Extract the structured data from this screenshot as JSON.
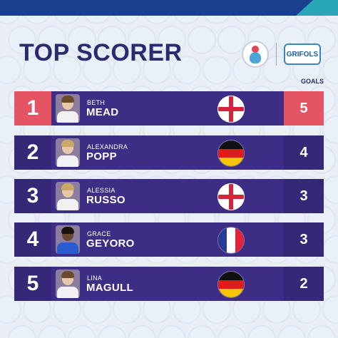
{
  "title": "TOP SCORER",
  "logos": {
    "uefa": "uefa-womens-euro-icon",
    "sponsor": "GRIFOLS"
  },
  "goals_header": "GOALS",
  "colors": {
    "purple": "#3e2d84",
    "highlight": "#e2384d",
    "title": "#2c2a6e"
  },
  "players": [
    {
      "rank": "1",
      "first": "BETH",
      "last": "MEAD",
      "flag": "england-flag-icon",
      "goals": "5"
    },
    {
      "rank": "2",
      "first": "ALEXANDRA",
      "last": "POPP",
      "flag": "germany-flag-icon",
      "goals": "4"
    },
    {
      "rank": "3",
      "first": "ALESSIA",
      "last": "RUSSO",
      "flag": "england-flag-icon",
      "goals": "3"
    },
    {
      "rank": "4",
      "first": "GRACE",
      "last": "GEYORO",
      "flag": "france-flag-icon",
      "goals": "3"
    },
    {
      "rank": "5",
      "first": "LINA",
      "last": "MAGULL",
      "flag": "germany-flag-icon",
      "goals": "2"
    }
  ]
}
